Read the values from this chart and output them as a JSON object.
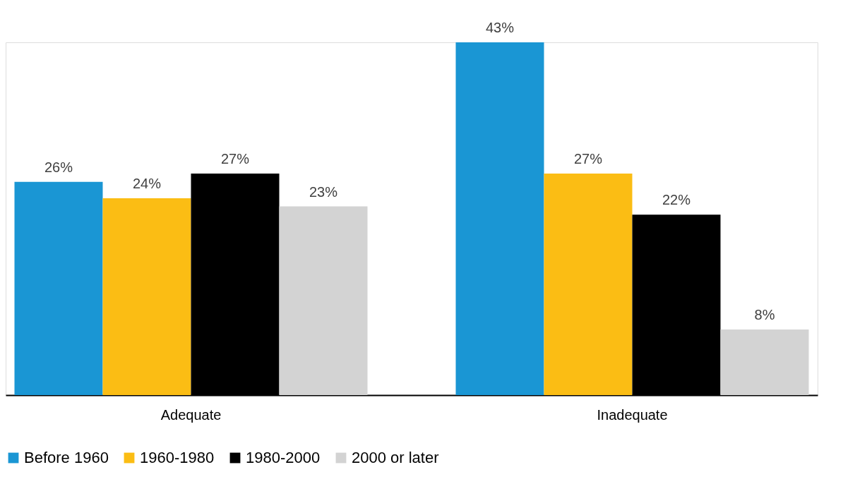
{
  "chart_data": {
    "type": "bar",
    "categories": [
      "Adequate",
      "Inadequate"
    ],
    "series": [
      {
        "name": "Before 1960",
        "color": "#1a96d4",
        "values": [
          26,
          43
        ],
        "value_labels": [
          "26%",
          "43%"
        ]
      },
      {
        "name": "1960-1980",
        "color": "#fbbd14",
        "values": [
          24,
          27
        ],
        "value_labels": [
          "24%",
          "27%"
        ]
      },
      {
        "name": "1980-2000",
        "color": "#000000",
        "values": [
          27,
          22
        ],
        "value_labels": [
          "27%",
          "22%"
        ]
      },
      {
        "name": "2000 or later",
        "color": "#d3d3d3",
        "values": [
          23,
          8
        ],
        "value_labels": [
          "23%",
          "8%"
        ]
      }
    ],
    "legend": "bottom",
    "grid": false
  }
}
